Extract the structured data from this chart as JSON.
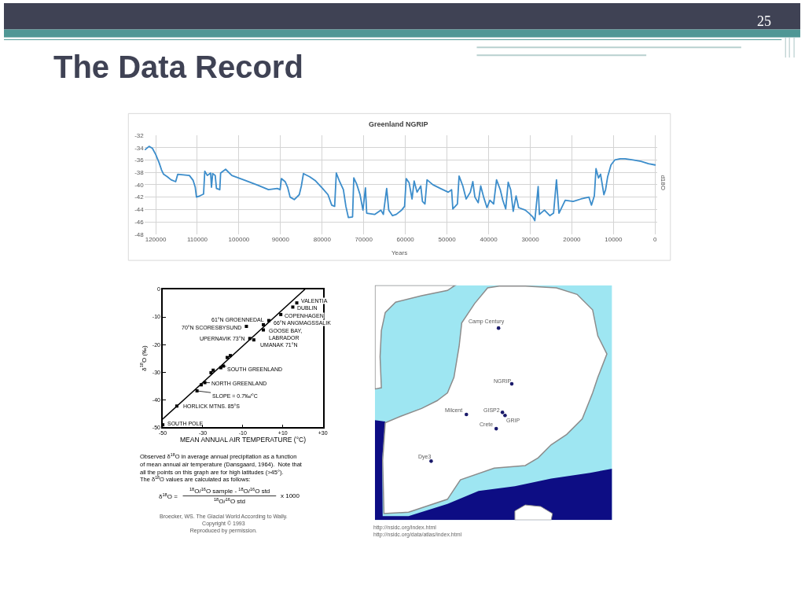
{
  "chart_data": [
    {
      "type": "other",
      "title": "The Data Record",
      "annotations": [
        "25"
      ]
    },
    {
      "type": "line",
      "title": "Greenland NGRIP",
      "xlabel": "Years",
      "ylabel": "d18O",
      "color": "#3c8dcb",
      "x": [
        122500,
        121600,
        120800,
        120000,
        119200,
        118600,
        118100,
        117200,
        116300,
        115200,
        114700,
        111900,
        111000,
        110500,
        110200,
        109400,
        108500,
        108200,
        107600,
        106800,
        106600,
        106300,
        105700,
        105400,
        104600,
        104400,
        103200,
        101700,
        98500,
        95400,
        92900,
        90800,
        90100,
        89800,
        88900,
        88300,
        87700,
        86700,
        85500,
        85000,
        84500,
        83000,
        81700,
        79900,
        78600,
        77700,
        77000,
        76600,
        75800,
        74900,
        74300,
        73700,
        72700,
        72400,
        71700,
        70900,
        70200,
        69600,
        69300,
        67400,
        65900,
        65300,
        64500,
        64000,
        63100,
        62200,
        60900,
        60200,
        59800,
        59100,
        58400,
        57900,
        57200,
        56300,
        55900,
        55300,
        54800,
        53400,
        51600,
        49700,
        48900,
        48600,
        47500,
        47100,
        46200,
        45400,
        44400,
        43800,
        43300,
        42500,
        41900,
        41200,
        40400,
        39700,
        38800,
        38100,
        37200,
        36600,
        35900,
        35300,
        34700,
        34100,
        33400,
        32800,
        31200,
        30300,
        29400,
        28900,
        28100,
        27800,
        26600,
        25300,
        24400,
        23700,
        23100,
        21600,
        19700,
        17800,
        15900,
        15300,
        14600,
        14200,
        13600,
        13100,
        12300,
        11900,
        11400,
        10600,
        9700,
        8400,
        7200,
        5300,
        3400,
        1600,
        0
      ],
      "values": [
        -34.3,
        -33.8,
        -34.1,
        -35.1,
        -36.4,
        -37.6,
        -38.3,
        -38.7,
        -39.2,
        -39.5,
        -38.3,
        -38.5,
        -39.3,
        -40.4,
        -42.0,
        -41.8,
        -41.5,
        -37.8,
        -38.5,
        -38.1,
        -40.4,
        -38.2,
        -38.5,
        -40.6,
        -40.8,
        -38.1,
        -37.5,
        -38.5,
        -39.3,
        -40.1,
        -40.8,
        -40.6,
        -40.8,
        -39.0,
        -39.5,
        -40.4,
        -42.0,
        -42.4,
        -41.6,
        -40.2,
        -38.2,
        -38.7,
        -39.3,
        -40.6,
        -41.6,
        -43.3,
        -43.5,
        -38.1,
        -39.5,
        -40.8,
        -43.5,
        -45.3,
        -45.2,
        -38.9,
        -39.9,
        -41.6,
        -44.1,
        -40.5,
        -44.6,
        -44.8,
        -44.1,
        -44.8,
        -40.6,
        -44.1,
        -45.0,
        -44.8,
        -44.1,
        -43.5,
        -39.0,
        -39.7,
        -42.3,
        -39.4,
        -41.2,
        -40.2,
        -42.7,
        -43.1,
        -39.2,
        -40.0,
        -40.6,
        -41.2,
        -40.8,
        -43.9,
        -43.1,
        -38.6,
        -40.2,
        -42.3,
        -41.2,
        -39.5,
        -42.0,
        -42.9,
        -40.2,
        -42.0,
        -43.7,
        -42.5,
        -43.1,
        -39.2,
        -40.8,
        -42.5,
        -43.9,
        -39.6,
        -40.8,
        -44.3,
        -41.8,
        -43.7,
        -44.1,
        -44.6,
        -45.2,
        -45.8,
        -40.3,
        -44.8,
        -44.1,
        -45.0,
        -44.6,
        -39.2,
        -44.6,
        -42.5,
        -42.7,
        -42.3,
        -42.0,
        -43.3,
        -41.8,
        -37.4,
        -38.9,
        -38.3,
        -41.6,
        -40.8,
        -38.7,
        -36.8,
        -36.0,
        -35.8,
        -35.8,
        -36.0,
        -36.2,
        -36.6,
        -36.8
      ],
      "xlim": [
        122700,
        -500
      ],
      "ylim": [
        -48,
        -32
      ],
      "xticks": [
        120000,
        110000,
        100000,
        90000,
        80000,
        70000,
        60000,
        50000,
        40000,
        30000,
        20000,
        10000,
        0
      ],
      "yticks": [
        -32,
        -34,
        -36,
        -38,
        -40,
        -42,
        -44,
        -46,
        -48
      ],
      "grid": true
    },
    {
      "type": "scatter",
      "xlabel": "MEAN ANNUAL AIR TEMPERATURE (°C)",
      "ylabel": "δ$^{18}$O (‰)",
      "xlim": [
        -50,
        30
      ],
      "ylim": [
        -50,
        0
      ],
      "xticks": [
        -50,
        -30,
        -10,
        {
          "value": 10,
          "label": "+10"
        },
        {
          "value": 30,
          "label": "+30"
        }
      ],
      "yticks": [
        0,
        -10,
        -20,
        -30,
        -40,
        -50
      ],
      "series": [
        {
          "type": "line",
          "color": "#000000",
          "x": [
            -50,
            21
          ],
          "values": [
            -47,
            0
          ]
        },
        {
          "type": "scatter",
          "marker": "square",
          "color": "#000000",
          "x": [
            17,
            15,
            9,
            3,
            -8.2,
            0.3,
            0.3,
            -6.5,
            -4.5,
            -19.7,
            -29,
            -43,
            -50,
            -32.9,
            -30.8,
            -25.9,
            -24.8,
            -21,
            -17.8,
            -16.2
          ],
          "values": [
            -4.9,
            -6.4,
            -9.1,
            -11.3,
            -13.4,
            -12.8,
            -14.7,
            -17.8,
            -18.3,
            -27.8,
            -33.8,
            -42.3,
            -49.1,
            -36.8,
            -34.6,
            -30.2,
            -29.3,
            -28.4,
            -24.7,
            -24.0
          ]
        }
      ],
      "annotations": [
        {
          "text": "VALENTIA",
          "x": 17,
          "y": -4.9
        },
        {
          "text": "DUBLIN",
          "x": 15,
          "y": -6.4
        },
        {
          "text": "COPENHAGEN",
          "x": 9,
          "y": -9.1
        },
        {
          "text": "61°N GROENNEDAL",
          "x": 3,
          "y": -11.3
        },
        {
          "text": "70°N SCORESBYSUND",
          "x": -8.2,
          "y": -13.4
        },
        {
          "text": "66°N ANGMAGSSALIK",
          "x": 0.3,
          "y": -12.8
        },
        {
          "text": "GOOSE BAY,\nLABRADOR",
          "x": 0.3,
          "y": -14.7
        },
        {
          "text": "UPERNAVIK 73°N",
          "x": -6.5,
          "y": -17.8
        },
        {
          "text": "UMANAK 71°N",
          "x": -4.5,
          "y": -18.3
        },
        {
          "text": "SOUTH GREENLAND",
          "x": -19.7,
          "y": -27.8
        },
        {
          "text": "NORTH GREENLAND",
          "x": -29,
          "y": -33.8
        },
        {
          "text": "SLOPE = 0.7‰/°C",
          "x": -32.9,
          "y": -36.8
        },
        {
          "text": "HORLICK MTNS. 85°S",
          "x": -43,
          "y": -42.3
        },
        {
          "text": "SOUTH POLE",
          "x": -50,
          "y": -49.1
        },
        "Observed δ$^{18}$O in average annual precipitation as a function\nof mean annual air temperature (Dansgaard, 1964).  Note that\nall the points on this graph are for high latitudes (>45°).\nThe δ$^{18}$O values are calculated as follows:",
        "δ$^{18}$O =",
        "$^{18}$O/$^{16}$O sample - $^{18}$O/$^{16}$O std",
        "$^{18}$O/$^{16}$O std",
        "x 1000",
        "Broecker, WS. The Glacial World According to Wally.\nCopyright © 1993\nReproduced by permission."
      ]
    },
    {
      "type": "other",
      "annotations": [
        "Camp Century",
        "NGRIP",
        "GISP2",
        "GRIP",
        "Milcent",
        "Crete",
        "Dye3",
        "http://nsidc.org/index.html",
        "http://nsidc.org/data/atlas/index.html"
      ]
    }
  ]
}
